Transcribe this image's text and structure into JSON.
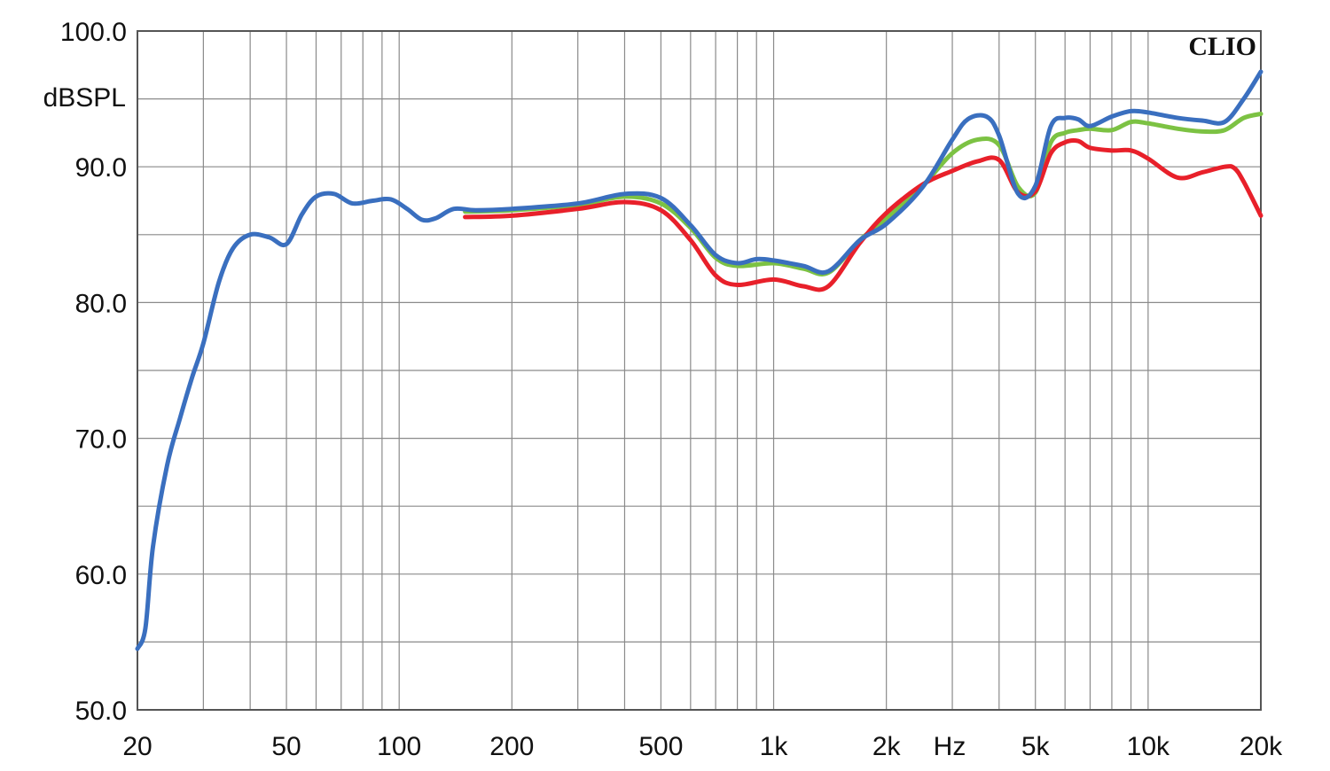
{
  "brand": "CLIO",
  "chart_data": {
    "type": "line",
    "title": "",
    "ylabel": "dBSPL",
    "xlabel": "Hz",
    "x_scale": "log",
    "xlim": [
      20,
      20000
    ],
    "ylim": [
      50,
      100
    ],
    "grid": true,
    "y_ticks": [
      {
        "value": 50,
        "label": "50.0"
      },
      {
        "value": 60,
        "label": "60.0"
      },
      {
        "value": 70,
        "label": "70.0"
      },
      {
        "value": 80,
        "label": "80.0"
      },
      {
        "value": 90,
        "label": "90.0"
      },
      {
        "value": 100,
        "label": "100.0"
      }
    ],
    "x_ticks": [
      {
        "value": 20,
        "label": "20"
      },
      {
        "value": 50,
        "label": "50"
      },
      {
        "value": 100,
        "label": "100"
      },
      {
        "value": 200,
        "label": "200"
      },
      {
        "value": 500,
        "label": "500"
      },
      {
        "value": 1000,
        "label": "1k"
      },
      {
        "value": 2000,
        "label": "2k"
      },
      {
        "value": 5000,
        "label": "5k"
      },
      {
        "value": 10000,
        "label": "10k"
      },
      {
        "value": 20000,
        "label": "20k"
      }
    ],
    "series": [
      {
        "color": "#7cc243",
        "x": [
          150,
          200,
          300,
          400,
          500,
          600,
          700,
          800,
          1000,
          1200,
          1400,
          1700,
          2000,
          2500,
          3000,
          3500,
          4000,
          4500,
          5000,
          5500,
          6000,
          6500,
          7000,
          8000,
          9000,
          10000,
          12000,
          14000,
          16000,
          18000,
          20000
        ],
        "y": [
          86.7,
          86.8,
          87.2,
          87.8,
          87.3,
          85.5,
          83.3,
          82.7,
          82.9,
          82.5,
          82.2,
          84.6,
          86.2,
          88.6,
          91.0,
          92.0,
          91.6,
          88.5,
          88.1,
          91.8,
          92.5,
          92.7,
          92.8,
          92.7,
          93.3,
          93.2,
          92.8,
          92.6,
          92.7,
          93.6,
          93.9
        ]
      },
      {
        "color": "#e8202a",
        "x": [
          150,
          200,
          300,
          400,
          500,
          600,
          700,
          800,
          1000,
          1200,
          1400,
          1700,
          2000,
          2500,
          3000,
          3500,
          4000,
          4500,
          5000,
          5500,
          6000,
          6500,
          7000,
          8000,
          9000,
          10000,
          12000,
          14000,
          16000,
          17000,
          18000,
          20000
        ],
        "y": [
          86.3,
          86.4,
          86.9,
          87.4,
          86.8,
          84.6,
          82.0,
          81.3,
          81.7,
          81.2,
          81.2,
          84.4,
          86.6,
          88.7,
          89.7,
          90.4,
          90.5,
          88.1,
          88.2,
          91.0,
          91.8,
          91.9,
          91.4,
          91.2,
          91.2,
          90.6,
          89.2,
          89.6,
          90.0,
          89.9,
          88.9,
          86.4
        ]
      },
      {
        "color": "#3a6fbf",
        "x": [
          20,
          21,
          22,
          24,
          26,
          28,
          30,
          33,
          36,
          40,
          45,
          50,
          55,
          60,
          67,
          75,
          85,
          95,
          105,
          115,
          125,
          140,
          160,
          200,
          300,
          400,
          500,
          600,
          700,
          800,
          900,
          1000,
          1200,
          1400,
          1700,
          2000,
          2500,
          3000,
          3300,
          3700,
          4000,
          4500,
          5000,
          5500,
          6000,
          6500,
          7000,
          8000,
          9000,
          10000,
          12000,
          14000,
          16000,
          18000,
          20000
        ],
        "y": [
          54.5,
          56.0,
          62.0,
          68.0,
          71.5,
          74.5,
          77.0,
          81.5,
          84.0,
          85.0,
          84.8,
          84.3,
          86.5,
          87.8,
          88.0,
          87.3,
          87.5,
          87.6,
          86.9,
          86.1,
          86.2,
          86.9,
          86.8,
          86.9,
          87.3,
          88.0,
          87.7,
          85.7,
          83.5,
          82.9,
          83.2,
          83.1,
          82.7,
          82.3,
          84.6,
          85.8,
          88.5,
          92.0,
          93.5,
          93.7,
          92.3,
          88.0,
          88.6,
          93.0,
          93.6,
          93.5,
          93.0,
          93.7,
          94.1,
          94.0,
          93.6,
          93.4,
          93.3,
          95.0,
          97.0
        ]
      }
    ]
  }
}
